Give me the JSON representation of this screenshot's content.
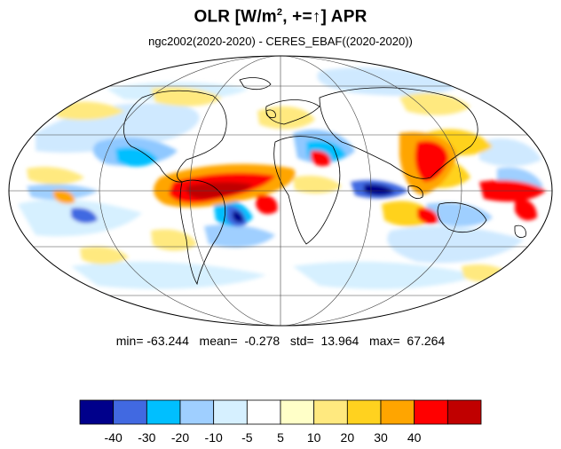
{
  "title": {
    "main": "OLR [W/m",
    "sup": "2",
    "rest": ", +=",
    "arrow": "↑",
    "end": "] APR"
  },
  "subtitle": "ngc2002(2020-2020) - CERES_EBAF((2020-2020))",
  "stats": {
    "text": "min= -63.244   mean=  -0.278   std=  13.964   max=  67.264",
    "min": -63.244,
    "mean": -0.278,
    "std": 13.964,
    "max": 67.264
  },
  "colorbar": {
    "colors": [
      "#00008b",
      "#4169e1",
      "#00bfff",
      "#9fcfff",
      "#d6f0ff",
      "#ffffff",
      "#ffffc8",
      "#ffe97f",
      "#ffd21f",
      "#ffa500",
      "#ff0000",
      "#c00000"
    ],
    "tick_values": [
      "-40",
      "-30",
      "-20",
      "-10",
      "-5",
      "5",
      "10",
      "20",
      "30",
      "40"
    ]
  },
  "map": {
    "projection": "mollweide",
    "central_longitude": 0,
    "field": "OLR difference"
  }
}
